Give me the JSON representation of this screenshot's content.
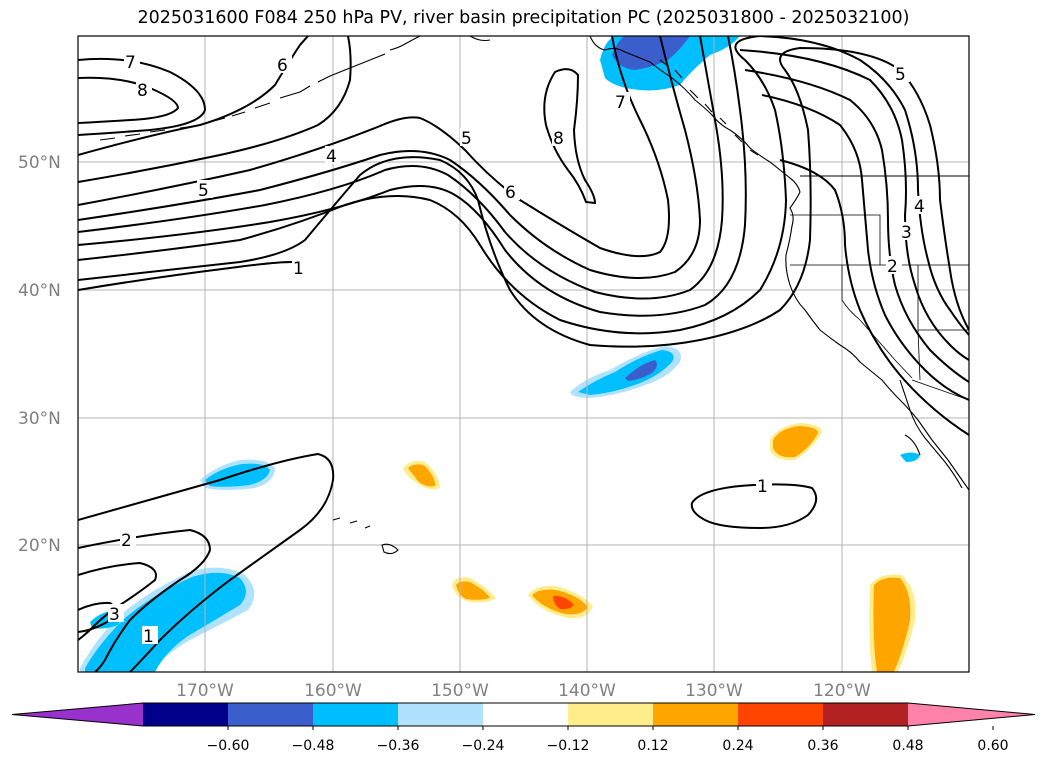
{
  "title": "2025031600 F084 250 hPa PV, river basin precipitation PC (2025031800 - 2025032100)",
  "lat_labels": [
    "50°N",
    "40°N",
    "30°N",
    "20°N"
  ],
  "lon_labels": [
    "170°W",
    "160°W",
    "150°W",
    "140°W",
    "130°W",
    "120°W"
  ],
  "contour_labels": [
    "7",
    "8",
    "6",
    "4",
    "5",
    "1",
    "5",
    "8",
    "6",
    "7",
    "5",
    "4",
    "3",
    "2",
    "1",
    "2",
    "3",
    "1"
  ],
  "colorbar": {
    "ticks": [
      "−0.60",
      "−0.48",
      "−0.36",
      "−0.24",
      "−0.12",
      "0.12",
      "0.24",
      "0.36",
      "0.48",
      "0.60"
    ],
    "colors": [
      "#9932cc",
      "#00008b",
      "#3a5fcd",
      "#00bfff",
      "#b0e2ff",
      "#ffffff",
      "#ffec8b",
      "#ffa500",
      "#ff4500",
      "#b22222",
      "#ff82ab"
    ]
  },
  "colors": {
    "contour": "#000000",
    "grid": "#b3b3b3",
    "coast": "#000000"
  }
}
